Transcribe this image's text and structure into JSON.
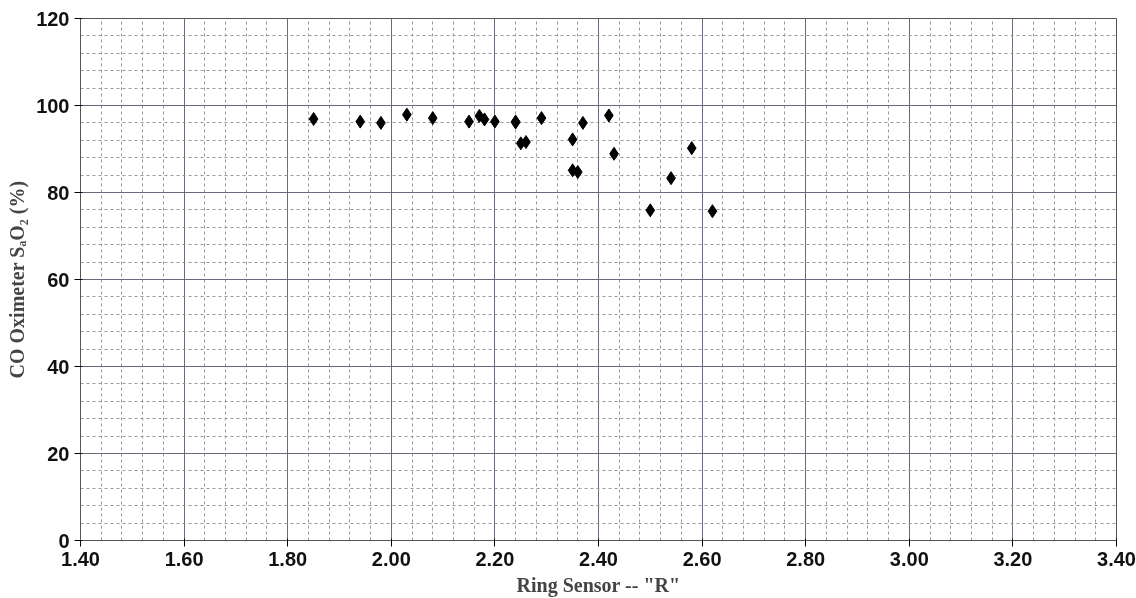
{
  "chart_data": {
    "type": "scatter",
    "xlabel": "Ring Sensor -- \"R\"",
    "ylabel": "CO Oximeter SₐO₂ (%)",
    "x": [
      1.85,
      1.94,
      1.98,
      2.03,
      2.08,
      2.15,
      2.17,
      2.18,
      2.2,
      2.24,
      2.24,
      2.25,
      2.26,
      2.29,
      2.35,
      2.37,
      2.35,
      2.36,
      2.42,
      2.43,
      2.58,
      2.54,
      2.5,
      2.62
    ],
    "values": [
      96.9,
      96.3,
      96.0,
      97.9,
      97.1,
      96.3,
      97.6,
      96.8,
      96.3,
      96.1,
      96.3,
      91.3,
      91.6,
      97.1,
      92.2,
      96.0,
      85.1,
      84.7,
      97.7,
      88.9,
      90.2,
      83.3,
      75.9,
      75.7
    ],
    "color": "#000000",
    "marker": "diamond",
    "xlim": [
      1.4,
      3.4
    ],
    "xticks": [
      {
        "value": 1.4,
        "label": "1.40"
      },
      {
        "value": 1.6,
        "label": "1.60"
      },
      {
        "value": 1.8,
        "label": "1.80"
      },
      {
        "value": 2.0,
        "label": "2.00"
      },
      {
        "value": 2.2,
        "label": "2.20"
      },
      {
        "value": 2.4,
        "label": "2.40"
      },
      {
        "value": 2.6,
        "label": "2.60"
      },
      {
        "value": 2.8,
        "label": "2.80"
      },
      {
        "value": 3.0,
        "label": "3.00"
      },
      {
        "value": 3.2,
        "label": "3.20"
      },
      {
        "value": 3.4,
        "label": "3.40"
      }
    ],
    "ylim": [
      0,
      120
    ],
    "yticks": [
      0,
      20,
      40,
      60,
      80,
      100,
      120
    ],
    "grid": true
  }
}
